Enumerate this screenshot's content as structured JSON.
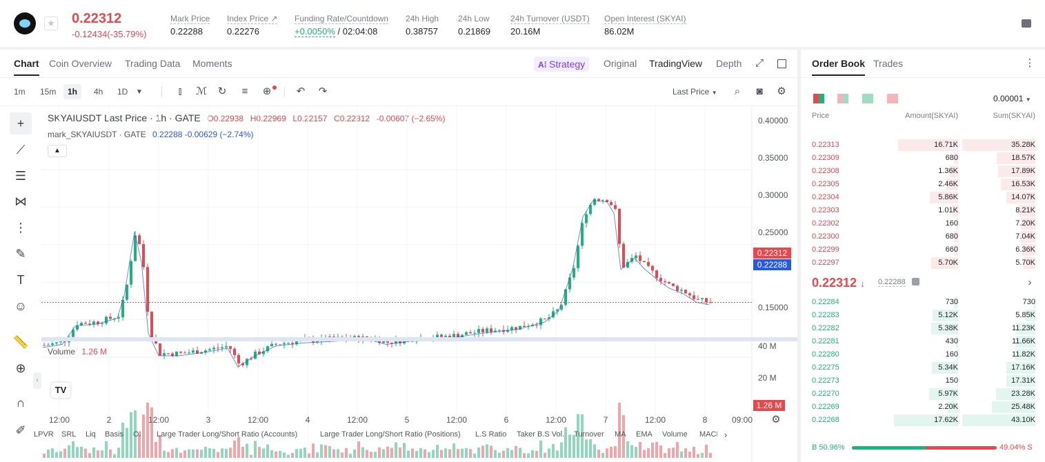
{
  "header": {
    "price": "0.22312",
    "change": "-0.12434(-35.79%)",
    "stats": [
      {
        "label": "Mark Price",
        "value": "0.22288"
      },
      {
        "label": "Index Price ↗",
        "value": "0.22276"
      },
      {
        "label": "Funding Rate/Countdown",
        "value_green": "+0.0050%",
        "value": "/ 02:04:08"
      },
      {
        "label": "24h High",
        "value": "0.38757"
      },
      {
        "label": "24h Low",
        "value": "0.21869"
      },
      {
        "label": "24h Turnover (USDT)",
        "value": "20.16M"
      },
      {
        "label": "Open Interest (SKYAI)",
        "value": "86.02M"
      }
    ]
  },
  "chart_tabs": {
    "chart": "Chart",
    "coin": "Coin Overview",
    "trading": "Trading Data",
    "moments": "Moments",
    "strategy": "Strategy",
    "original": "Original",
    "tv": "TradingView",
    "depth": "Depth"
  },
  "timeframes": [
    "1m",
    "15m",
    "1h",
    "4h",
    "1D"
  ],
  "last_price_sel": "Last Price",
  "legend": {
    "symbol": "SKYAIUSDT Last Price · 1h · GATE",
    "o": "O0.22938",
    "h": "H0.22969",
    "l": "L0.22157",
    "c": "C0.22312",
    "chg": "-0.00607 (−2.65%)",
    "mark": "mark_SKYAIUSDT · GATE",
    "mark_val": "0.22288 -0.00629 (−2.74%)"
  },
  "volume": {
    "label": "Volume",
    "value": "1.26 M",
    "axis": [
      "40 M",
      "20 M"
    ],
    "tag": "1.26 M"
  },
  "price_axis": [
    "0.40000",
    "0.35000",
    "0.30000",
    "0.25000",
    "0.15000"
  ],
  "price_tags": {
    "last": "0.22312",
    "mark": "0.22288"
  },
  "time_axis": [
    "12:00",
    "2",
    "12:00",
    "3",
    "12:00",
    "4",
    "12:00",
    "5",
    "12:00",
    "6",
    "12:00",
    "7",
    "12:00",
    "8",
    "09:00"
  ],
  "indicators": [
    "LPVR",
    "SRL",
    "Liq",
    "Basis",
    "OI",
    "Large Trader Long/Short Ratio (Accounts)",
    "Large Trader Long/Short Ratio (Positions)",
    "L.S Ratio",
    "Taker B.S Vol.",
    "Turnover",
    "MA",
    "EMA",
    "Volume",
    "MACD"
  ],
  "orderbook": {
    "tab1": "Order Book",
    "tab2": "Trades",
    "precision": "0.00001",
    "cols": [
      "Price",
      "Amount(SKYAI)",
      "Sum(SKYAI)"
    ],
    "asks": [
      {
        "p": "0.22313",
        "a": "16.71K",
        "s": "35.28K",
        "af": 0.75,
        "sf": 1.0
      },
      {
        "p": "0.22309",
        "a": "680",
        "s": "18.57K",
        "af": 0.05,
        "sf": 0.53
      },
      {
        "p": "0.22308",
        "a": "1.36K",
        "s": "17.89K",
        "af": 0.1,
        "sf": 0.51
      },
      {
        "p": "0.22305",
        "a": "2.46K",
        "s": "16.53K",
        "af": 0.15,
        "sf": 0.47
      },
      {
        "p": "0.22304",
        "a": "5.86K",
        "s": "14.07K",
        "af": 0.35,
        "sf": 0.4
      },
      {
        "p": "0.22303",
        "a": "1.01K",
        "s": "8.21K",
        "af": 0.07,
        "sf": 0.23
      },
      {
        "p": "0.22302",
        "a": "160",
        "s": "7.20K",
        "af": 0.02,
        "sf": 0.2
      },
      {
        "p": "0.22300",
        "a": "680",
        "s": "7.04K",
        "af": 0.05,
        "sf": 0.2
      },
      {
        "p": "0.22299",
        "a": "660",
        "s": "6.36K",
        "af": 0.05,
        "sf": 0.18
      },
      {
        "p": "0.22297",
        "a": "5.70K",
        "s": "5.70K",
        "af": 0.34,
        "sf": 0.16
      }
    ],
    "mid": "0.22312",
    "mid_mark": "0.22288",
    "bids": [
      {
        "p": "0.22284",
        "a": "730",
        "s": "730",
        "af": 0.05,
        "sf": 0.02
      },
      {
        "p": "0.22283",
        "a": "5.12K",
        "s": "5.85K",
        "af": 0.32,
        "sf": 0.14
      },
      {
        "p": "0.22282",
        "a": "5.38K",
        "s": "11.23K",
        "af": 0.34,
        "sf": 0.26
      },
      {
        "p": "0.22281",
        "a": "430",
        "s": "11.66K",
        "af": 0.03,
        "sf": 0.27
      },
      {
        "p": "0.22280",
        "a": "160",
        "s": "11.82K",
        "af": 0.02,
        "sf": 0.27
      },
      {
        "p": "0.22275",
        "a": "5.34K",
        "s": "17.16K",
        "af": 0.33,
        "sf": 0.4
      },
      {
        "p": "0.22273",
        "a": "150",
        "s": "17.31K",
        "af": 0.02,
        "sf": 0.4
      },
      {
        "p": "0.22270",
        "a": "5.97K",
        "s": "23.28K",
        "af": 0.36,
        "sf": 0.54
      },
      {
        "p": "0.22269",
        "a": "2.20K",
        "s": "25.48K",
        "af": 0.14,
        "sf": 0.59
      },
      {
        "p": "0.22268",
        "a": "17.62K",
        "s": "43.10K",
        "af": 0.8,
        "sf": 1.0
      }
    ],
    "buy_pct": "B 50.96%",
    "sell_pct": "49.04% S",
    "buy_frac": 0.5096
  },
  "colors": {
    "up": "#1fb27a",
    "down": "#e5484d"
  }
}
